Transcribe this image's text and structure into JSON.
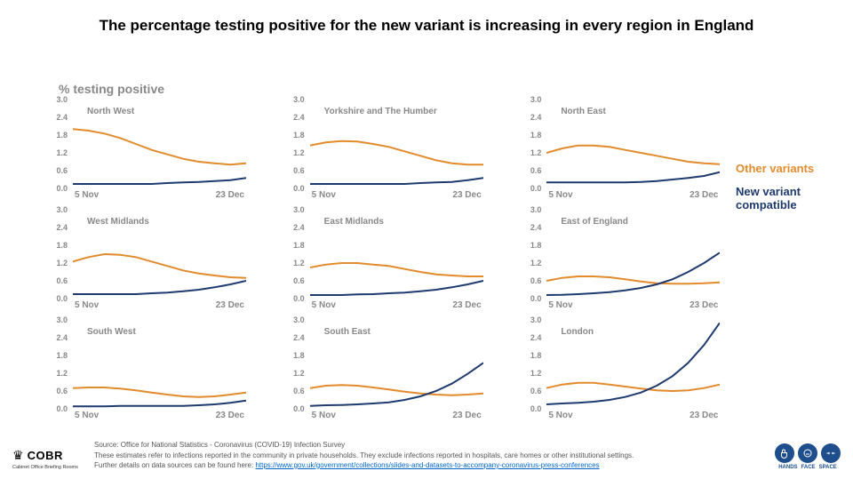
{
  "title": "The percentage testing positive for the new variant is increasing in every region in England",
  "ylabel": "% testing positive",
  "colors": {
    "other": "#e28b2d",
    "new": "#1e3a6e",
    "tick": "#888888",
    "bg": "#ffffff",
    "link": "#0066cc",
    "brand": "#1e4f8c"
  },
  "axes": {
    "ymin": 0.0,
    "ymax": 3.0,
    "ytick_step": 0.6,
    "yticks": [
      "0.0",
      "0.6",
      "1.2",
      "1.8",
      "2.4",
      "3.0"
    ],
    "xlabels": [
      "5 Nov",
      "23 Dec"
    ],
    "line_width": 2
  },
  "legend": [
    {
      "label": "Other variants",
      "color": "#e28b2d"
    },
    {
      "label": "New variant compatible",
      "color": "#1e3a6e"
    }
  ],
  "panels": [
    {
      "title": "North West",
      "other": [
        2.0,
        1.95,
        1.85,
        1.7,
        1.5,
        1.3,
        1.15,
        1.0,
        0.9,
        0.85,
        0.8,
        0.85
      ],
      "new": [
        0.15,
        0.15,
        0.15,
        0.15,
        0.15,
        0.15,
        0.18,
        0.2,
        0.22,
        0.25,
        0.28,
        0.35
      ]
    },
    {
      "title": "Yorkshire and The Humber",
      "other": [
        1.45,
        1.55,
        1.6,
        1.58,
        1.5,
        1.4,
        1.25,
        1.1,
        0.95,
        0.85,
        0.8,
        0.8
      ],
      "new": [
        0.15,
        0.15,
        0.15,
        0.15,
        0.15,
        0.15,
        0.15,
        0.18,
        0.2,
        0.22,
        0.28,
        0.35
      ]
    },
    {
      "title": "North East",
      "other": [
        1.2,
        1.35,
        1.45,
        1.45,
        1.4,
        1.3,
        1.2,
        1.1,
        1.0,
        0.9,
        0.85,
        0.82
      ],
      "new": [
        0.2,
        0.2,
        0.2,
        0.2,
        0.2,
        0.2,
        0.22,
        0.25,
        0.3,
        0.35,
        0.42,
        0.55
      ]
    },
    {
      "title": "West Midlands",
      "other": [
        1.25,
        1.4,
        1.5,
        1.48,
        1.4,
        1.25,
        1.1,
        0.95,
        0.85,
        0.78,
        0.72,
        0.7
      ],
      "new": [
        0.15,
        0.15,
        0.15,
        0.15,
        0.15,
        0.18,
        0.2,
        0.25,
        0.3,
        0.38,
        0.48,
        0.6
      ]
    },
    {
      "title": "East Midlands",
      "other": [
        1.05,
        1.15,
        1.2,
        1.2,
        1.15,
        1.1,
        1.0,
        0.9,
        0.82,
        0.78,
        0.75,
        0.75
      ],
      "new": [
        0.12,
        0.12,
        0.12,
        0.14,
        0.15,
        0.18,
        0.2,
        0.25,
        0.3,
        0.38,
        0.48,
        0.6
      ]
    },
    {
      "title": "East of England",
      "other": [
        0.6,
        0.7,
        0.75,
        0.75,
        0.72,
        0.65,
        0.58,
        0.52,
        0.5,
        0.5,
        0.52,
        0.55
      ],
      "new": [
        0.12,
        0.13,
        0.15,
        0.18,
        0.22,
        0.28,
        0.36,
        0.48,
        0.65,
        0.9,
        1.2,
        1.55
      ]
    },
    {
      "title": "South West",
      "other": [
        0.7,
        0.72,
        0.72,
        0.68,
        0.62,
        0.55,
        0.48,
        0.42,
        0.4,
        0.42,
        0.48,
        0.55
      ],
      "new": [
        0.08,
        0.08,
        0.08,
        0.1,
        0.1,
        0.1,
        0.1,
        0.1,
        0.12,
        0.15,
        0.2,
        0.28
      ]
    },
    {
      "title": "South East",
      "other": [
        0.7,
        0.78,
        0.8,
        0.78,
        0.72,
        0.65,
        0.58,
        0.52,
        0.48,
        0.46,
        0.48,
        0.52
      ],
      "new": [
        0.1,
        0.12,
        0.13,
        0.15,
        0.18,
        0.22,
        0.3,
        0.42,
        0.6,
        0.85,
        1.18,
        1.55
      ]
    },
    {
      "title": "London",
      "other": [
        0.7,
        0.82,
        0.88,
        0.88,
        0.82,
        0.75,
        0.68,
        0.62,
        0.6,
        0.62,
        0.7,
        0.82
      ],
      "new": [
        0.15,
        0.18,
        0.2,
        0.24,
        0.3,
        0.4,
        0.55,
        0.78,
        1.1,
        1.55,
        2.15,
        2.9
      ]
    }
  ],
  "footer": {
    "cobr": "COBR",
    "cobr_sub": "Cabinet Office Briefing Rooms",
    "source1": "Source: Office for National Statistics - Coronavirus (COVID-19) Infection Survey",
    "source2": "These estimates refer to infections reported in the community in private households. They exclude infections reported in hospitals, care homes or other institutional settings.",
    "source3_pre": "Further details on data sources can be found here: ",
    "source3_link": "https://www.gov.uk/government/collections/slides-and-datasets-to-accompany-coronavirus-press-conferences",
    "hfs": [
      "HANDS",
      "FACE",
      "SPACE"
    ]
  }
}
